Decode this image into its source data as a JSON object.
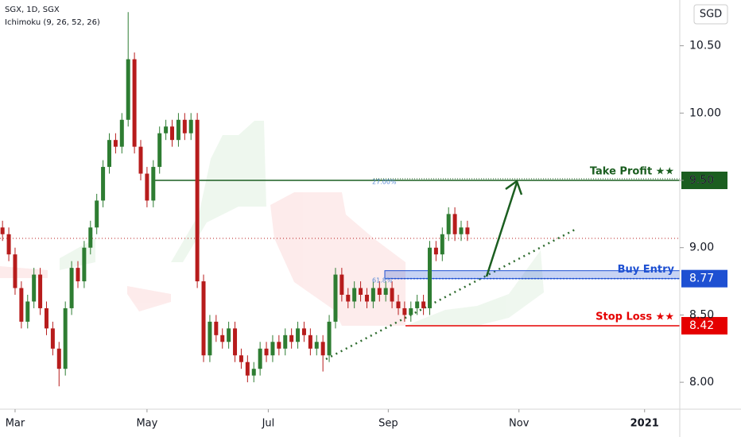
{
  "chart_data": {
    "type": "candlestick",
    "title": "SGX, 1D, SGX",
    "subtitle": "Ichimoku (9, 26, 52, 26)",
    "currency": "SGD",
    "up_color": "#2e7d32",
    "down_color": "#b71c1c",
    "open": [
      9.15,
      9.1,
      8.95,
      8.7,
      8.45,
      8.6,
      8.8,
      8.55,
      8.4,
      8.25,
      8.1,
      8.55,
      8.85,
      8.75,
      9.0,
      9.15,
      9.35,
      9.6,
      9.8,
      9.75,
      9.95,
      10.4,
      9.75,
      9.55,
      9.35,
      9.6,
      9.85,
      9.9,
      9.8,
      9.95,
      9.85,
      9.95,
      8.75,
      8.2,
      8.45,
      8.35,
      8.3,
      8.4,
      8.2,
      8.15,
      8.05,
      8.1,
      8.25,
      8.2,
      8.3,
      8.25,
      8.35,
      8.3,
      8.4,
      8.35,
      8.25,
      8.3,
      8.2,
      8.45,
      8.8,
      8.65,
      8.6,
      8.7,
      8.65,
      8.6,
      8.7,
      8.65,
      8.7,
      8.6,
      8.55,
      8.5,
      8.55,
      8.6,
      8.55,
      9.0,
      8.95,
      9.1,
      9.25,
      9.1,
      9.15
    ],
    "high": [
      9.2,
      9.15,
      9.0,
      8.75,
      8.65,
      8.85,
      8.85,
      8.6,
      8.45,
      8.3,
      8.6,
      8.9,
      8.9,
      9.05,
      9.2,
      9.4,
      9.65,
      9.85,
      9.85,
      10.0,
      10.75,
      10.45,
      9.8,
      9.6,
      9.65,
      9.9,
      9.95,
      9.95,
      10.0,
      10.0,
      10.0,
      10.0,
      8.8,
      8.5,
      8.5,
      8.4,
      8.45,
      8.45,
      8.25,
      8.2,
      8.15,
      8.3,
      8.3,
      8.35,
      8.35,
      8.4,
      8.4,
      8.45,
      8.45,
      8.4,
      8.35,
      8.35,
      8.5,
      8.85,
      8.85,
      8.7,
      8.75,
      8.75,
      8.7,
      8.75,
      8.75,
      8.75,
      8.75,
      8.65,
      8.6,
      8.6,
      8.65,
      8.65,
      9.05,
      9.05,
      9.15,
      9.3,
      9.3,
      9.2,
      9.2
    ],
    "low": [
      9.05,
      8.9,
      8.65,
      8.4,
      8.4,
      8.55,
      8.5,
      8.35,
      8.2,
      7.97,
      8.05,
      8.5,
      8.7,
      8.7,
      8.95,
      9.1,
      9.3,
      9.55,
      9.7,
      9.7,
      9.9,
      9.7,
      9.5,
      9.3,
      9.3,
      9.55,
      9.8,
      9.75,
      9.75,
      9.8,
      9.8,
      8.7,
      8.15,
      8.15,
      8.3,
      8.25,
      8.25,
      8.15,
      8.1,
      8.0,
      8.0,
      8.05,
      8.15,
      8.15,
      8.2,
      8.2,
      8.25,
      8.25,
      8.3,
      8.2,
      8.2,
      8.08,
      8.15,
      8.4,
      8.6,
      8.55,
      8.55,
      8.6,
      8.55,
      8.55,
      8.6,
      8.6,
      8.55,
      8.5,
      8.45,
      8.45,
      8.5,
      8.5,
      8.5,
      8.9,
      8.9,
      9.05,
      9.05,
      9.05,
      9.05
    ],
    "close": [
      9.1,
      8.95,
      8.7,
      8.45,
      8.6,
      8.8,
      8.55,
      8.4,
      8.25,
      8.1,
      8.55,
      8.85,
      8.75,
      9.0,
      9.15,
      9.35,
      9.6,
      9.8,
      9.75,
      9.95,
      10.4,
      9.75,
      9.55,
      9.35,
      9.6,
      9.85,
      9.9,
      9.8,
      9.95,
      9.85,
      9.95,
      8.75,
      8.2,
      8.45,
      8.35,
      8.3,
      8.4,
      8.2,
      8.15,
      8.05,
      8.1,
      8.25,
      8.2,
      8.3,
      8.25,
      8.35,
      8.3,
      8.4,
      8.35,
      8.25,
      8.3,
      8.2,
      8.45,
      8.8,
      8.65,
      8.6,
      8.7,
      8.65,
      8.6,
      8.7,
      8.65,
      8.7,
      8.6,
      8.55,
      8.5,
      8.55,
      8.6,
      8.55,
      9.0,
      8.95,
      9.1,
      9.25,
      9.1,
      9.15,
      9.1
    ],
    "xlim": [
      -0.4,
      107.8
    ],
    "xticks": [
      {
        "value": 2,
        "label": "Mar"
      },
      {
        "value": 23,
        "label": "May"
      },
      {
        "value": 42.3,
        "label": "Jul"
      },
      {
        "value": 61.4,
        "label": "Sep"
      },
      {
        "value": 82.2,
        "label": "Nov"
      },
      {
        "value": 102.2,
        "label": "2021"
      }
    ],
    "ylim": [
      7.8,
      10.84
    ],
    "yticks": [
      {
        "value": 8,
        "label": "8.00"
      },
      {
        "value": 8.5,
        "label": "8.50"
      },
      {
        "value": 9,
        "label": "9.00"
      },
      {
        "value": 9.5,
        "label": "9.50"
      },
      {
        "value": 10,
        "label": "10.00"
      },
      {
        "value": 10.5,
        "label": "10.50"
      }
    ],
    "levels": [
      {
        "name": "Take Profit ★★",
        "value": 9.5,
        "label": "9.50",
        "color": "#1b5e20"
      },
      {
        "name": "Buy Entry",
        "value": 8.77,
        "label": "8.77",
        "color": "#1e50d2"
      },
      {
        "name": "Stop Loss ★★",
        "value": 8.42,
        "label": "8.42",
        "color": "#e50000"
      }
    ],
    "fib_labels": [
      "27.00%",
      "61.8%"
    ]
  }
}
